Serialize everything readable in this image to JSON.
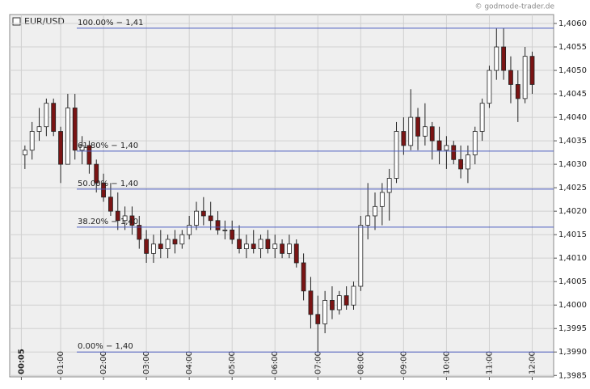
{
  "chart_data": {
    "type": "candlestick",
    "watermark": "© godmode-trader.de",
    "legend": "EUR/USD",
    "x": [
      "00:10",
      "00:20",
      "00:30",
      "00:40",
      "00:50",
      "01:00",
      "01:10",
      "01:20",
      "01:30",
      "01:40",
      "01:50",
      "02:00",
      "02:10",
      "02:20",
      "02:30",
      "02:40",
      "02:50",
      "03:00",
      "03:10",
      "03:20",
      "03:30",
      "03:40",
      "03:50",
      "04:00",
      "04:10",
      "04:20",
      "04:30",
      "04:40",
      "04:50",
      "05:00",
      "05:10",
      "05:20",
      "05:30",
      "05:40",
      "05:50",
      "06:00",
      "06:10",
      "06:20",
      "06:30",
      "06:40",
      "06:50",
      "07:00",
      "07:10",
      "07:20",
      "07:30",
      "07:40",
      "07:50",
      "08:00",
      "08:10",
      "08:20",
      "08:30",
      "08:40",
      "08:50",
      "09:00",
      "09:10",
      "09:20",
      "09:30",
      "09:40",
      "09:50",
      "10:00",
      "10:10",
      "10:20",
      "10:30",
      "10:40",
      "10:50",
      "11:00",
      "11:10",
      "11:20",
      "11:30",
      "11:40",
      "11:50",
      "12:00"
    ],
    "open": [
      1.4032,
      1.4033,
      1.4037,
      1.4038,
      1.4043,
      1.4037,
      1.403,
      1.4042,
      1.4033,
      1.4034,
      1.403,
      1.4026,
      1.4023,
      1.402,
      1.4018,
      1.4019,
      1.4017,
      1.4014,
      1.4011,
      1.4013,
      1.4012,
      1.4014,
      1.4013,
      1.4015,
      1.4017,
      1.402,
      1.4019,
      1.4018,
      1.4016,
      1.4016,
      1.4014,
      1.4012,
      1.4013,
      1.4012,
      1.4014,
      1.4012,
      1.4013,
      1.4011,
      1.4013,
      1.4009,
      1.4003,
      1.3998,
      1.3996,
      1.4001,
      1.3999,
      1.4002,
      1.4,
      1.4004,
      1.4017,
      1.4019,
      1.4021,
      1.4024,
      1.4027,
      1.4037,
      1.4034,
      1.404,
      1.4036,
      1.4038,
      1.4035,
      1.4033,
      1.4034,
      1.4031,
      1.4029,
      1.4032,
      1.4037,
      1.4043,
      1.405,
      1.4055,
      1.405,
      1.4047,
      1.4044,
      1.4053
    ],
    "high": [
      1.4034,
      1.4039,
      1.4042,
      1.4044,
      1.4044,
      1.4038,
      1.4045,
      1.4045,
      1.4036,
      1.4035,
      1.4031,
      1.4028,
      1.4026,
      1.4024,
      1.4021,
      1.4021,
      1.4019,
      1.4016,
      1.4015,
      1.4016,
      1.4015,
      1.4016,
      1.4016,
      1.4019,
      1.4022,
      1.4023,
      1.4022,
      1.402,
      1.4018,
      1.4018,
      1.4017,
      1.4015,
      1.4016,
      1.4015,
      1.4016,
      1.4015,
      1.4014,
      1.4015,
      1.4014,
      1.4011,
      1.4006,
      1.4002,
      1.4003,
      1.4004,
      1.4003,
      1.4004,
      1.4005,
      1.4019,
      1.4026,
      1.4024,
      1.4026,
      1.4029,
      1.4039,
      1.404,
      1.4046,
      1.4042,
      1.4043,
      1.4039,
      1.4038,
      1.4036,
      1.4035,
      1.4034,
      1.4034,
      1.4038,
      1.4044,
      1.4051,
      1.4059,
      1.4059,
      1.4053,
      1.405,
      1.4055,
      1.4054
    ],
    "low": [
      1.4029,
      1.4031,
      1.4035,
      1.4036,
      1.4036,
      1.4026,
      1.403,
      1.4031,
      1.403,
      1.4028,
      1.4024,
      1.4022,
      1.4019,
      1.4016,
      1.4016,
      1.4015,
      1.4012,
      1.4009,
      1.4009,
      1.401,
      1.401,
      1.4011,
      1.4012,
      1.4014,
      1.4016,
      1.4017,
      1.4016,
      1.4015,
      1.4014,
      1.4013,
      1.4011,
      1.401,
      1.4011,
      1.401,
      1.4011,
      1.401,
      1.401,
      1.401,
      1.4008,
      1.4001,
      1.3995,
      1.399,
      1.3994,
      1.3997,
      1.3998,
      1.3999,
      1.3999,
      1.4003,
      1.4014,
      1.4016,
      1.4017,
      1.4018,
      1.4026,
      1.4032,
      1.4033,
      1.4033,
      1.4034,
      1.4031,
      1.403,
      1.4029,
      1.403,
      1.4027,
      1.4026,
      1.403,
      1.4035,
      1.4042,
      1.4048,
      1.4048,
      1.4043,
      1.4039,
      1.4043,
      1.4045
    ],
    "close": [
      1.4033,
      1.4037,
      1.4038,
      1.4043,
      1.4037,
      1.403,
      1.4042,
      1.4033,
      1.4034,
      1.403,
      1.4026,
      1.4023,
      1.402,
      1.4018,
      1.4019,
      1.4017,
      1.4014,
      1.4011,
      1.4013,
      1.4012,
      1.4014,
      1.4013,
      1.4015,
      1.4017,
      1.402,
      1.4019,
      1.4018,
      1.4016,
      1.4016,
      1.4014,
      1.4012,
      1.4013,
      1.4012,
      1.4014,
      1.4012,
      1.4013,
      1.4011,
      1.4013,
      1.4009,
      1.4003,
      1.3998,
      1.3996,
      1.4001,
      1.3999,
      1.4002,
      1.4,
      1.4004,
      1.4017,
      1.4019,
      1.4021,
      1.4024,
      1.4027,
      1.4037,
      1.4034,
      1.404,
      1.4036,
      1.4038,
      1.4035,
      1.4033,
      1.4034,
      1.4031,
      1.4029,
      1.4032,
      1.4037,
      1.4043,
      1.405,
      1.4055,
      1.405,
      1.4047,
      1.4044,
      1.4053,
      1.4047
    ],
    "up_color": "#ffffff",
    "down_color": "#7a1414",
    "fib_color": "#4a5bbf",
    "fib_levels": [
      {
        "label": "100.00% − 1,41",
        "value": 1.4059
      },
      {
        "label": "61.80% − 1,40",
        "value": 1.40328
      },
      {
        "label": "50.00% − 1,40",
        "value": 1.40247
      },
      {
        "label": "38.20% − 1,40",
        "value": 1.40166
      },
      {
        "label": "0.00% − 1,40",
        "value": 1.399
      }
    ],
    "xlim": [
      "00:00",
      "12:30"
    ],
    "xticks": [
      "00:05",
      "01:00",
      "02:00",
      "03:00",
      "04:00",
      "05:00",
      "06:00",
      "07:00",
      "08:00",
      "09:00",
      "10:00",
      "11:00",
      "12:00"
    ],
    "ylim": [
      1.39847,
      1.40619
    ],
    "yticks": [
      {
        "value": 1.3985,
        "label": "1,3985"
      },
      {
        "value": 1.399,
        "label": "1,3990"
      },
      {
        "value": 1.3995,
        "label": "1,3995"
      },
      {
        "value": 1.4,
        "label": "1,4000"
      },
      {
        "value": 1.4005,
        "label": "1,4005"
      },
      {
        "value": 1.401,
        "label": "1,4010"
      },
      {
        "value": 1.4015,
        "label": "1,4015"
      },
      {
        "value": 1.402,
        "label": "1,4020"
      },
      {
        "value": 1.4025,
        "label": "1,4025"
      },
      {
        "value": 1.403,
        "label": "1,4030"
      },
      {
        "value": 1.4035,
        "label": "1,4035"
      },
      {
        "value": 1.404,
        "label": "1,4040"
      },
      {
        "value": 1.4045,
        "label": "1,4045"
      },
      {
        "value": 1.405,
        "label": "1,4050"
      },
      {
        "value": 1.4055,
        "label": "1,4055"
      },
      {
        "value": 1.406,
        "label": "1,4060"
      }
    ],
    "grid": true
  }
}
